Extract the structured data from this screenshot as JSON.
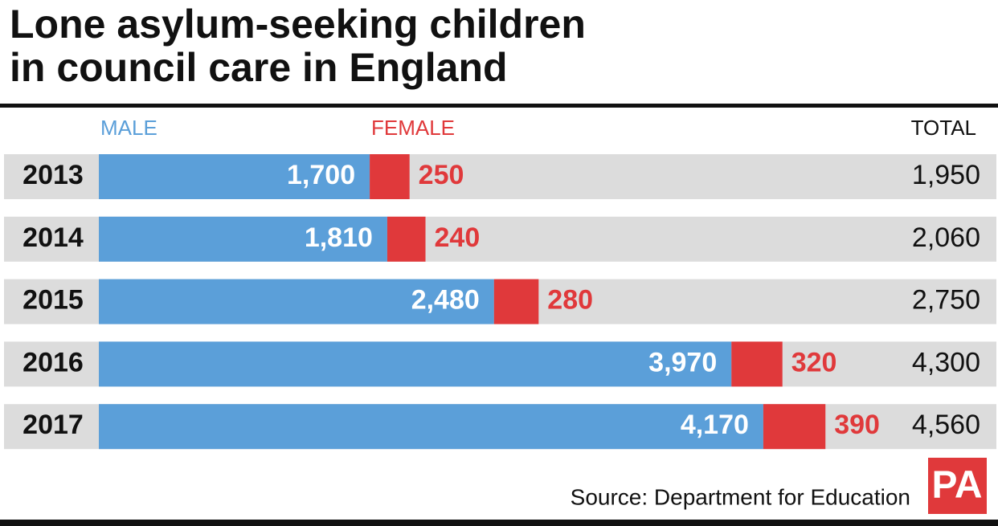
{
  "chart_data": {
    "type": "stacked-hbar",
    "title": [
      "Lone asylum-seeking children",
      "in council care in England"
    ],
    "categories": [
      "2013",
      "2014",
      "2015",
      "2016",
      "2017"
    ],
    "series": [
      {
        "name": "MALE",
        "color": "#5b9fd9",
        "values": [
          1700,
          1810,
          2480,
          3970,
          4170
        ],
        "value_labels": [
          "1,700",
          "1,810",
          "2,480",
          "3,970",
          "4,170"
        ]
      },
      {
        "name": "FEMALE",
        "color": "#e0393b",
        "values": [
          250,
          240,
          280,
          320,
          390
        ]
      }
    ],
    "totals_label": "TOTAL",
    "totals": [
      1950,
      2060,
      2750,
      4300,
      4560
    ],
    "totals_labels": [
      "1,950",
      "2,060",
      "2,750",
      "4,300",
      "4,560"
    ],
    "source": "Source: Department for Education",
    "logo": "PA"
  }
}
